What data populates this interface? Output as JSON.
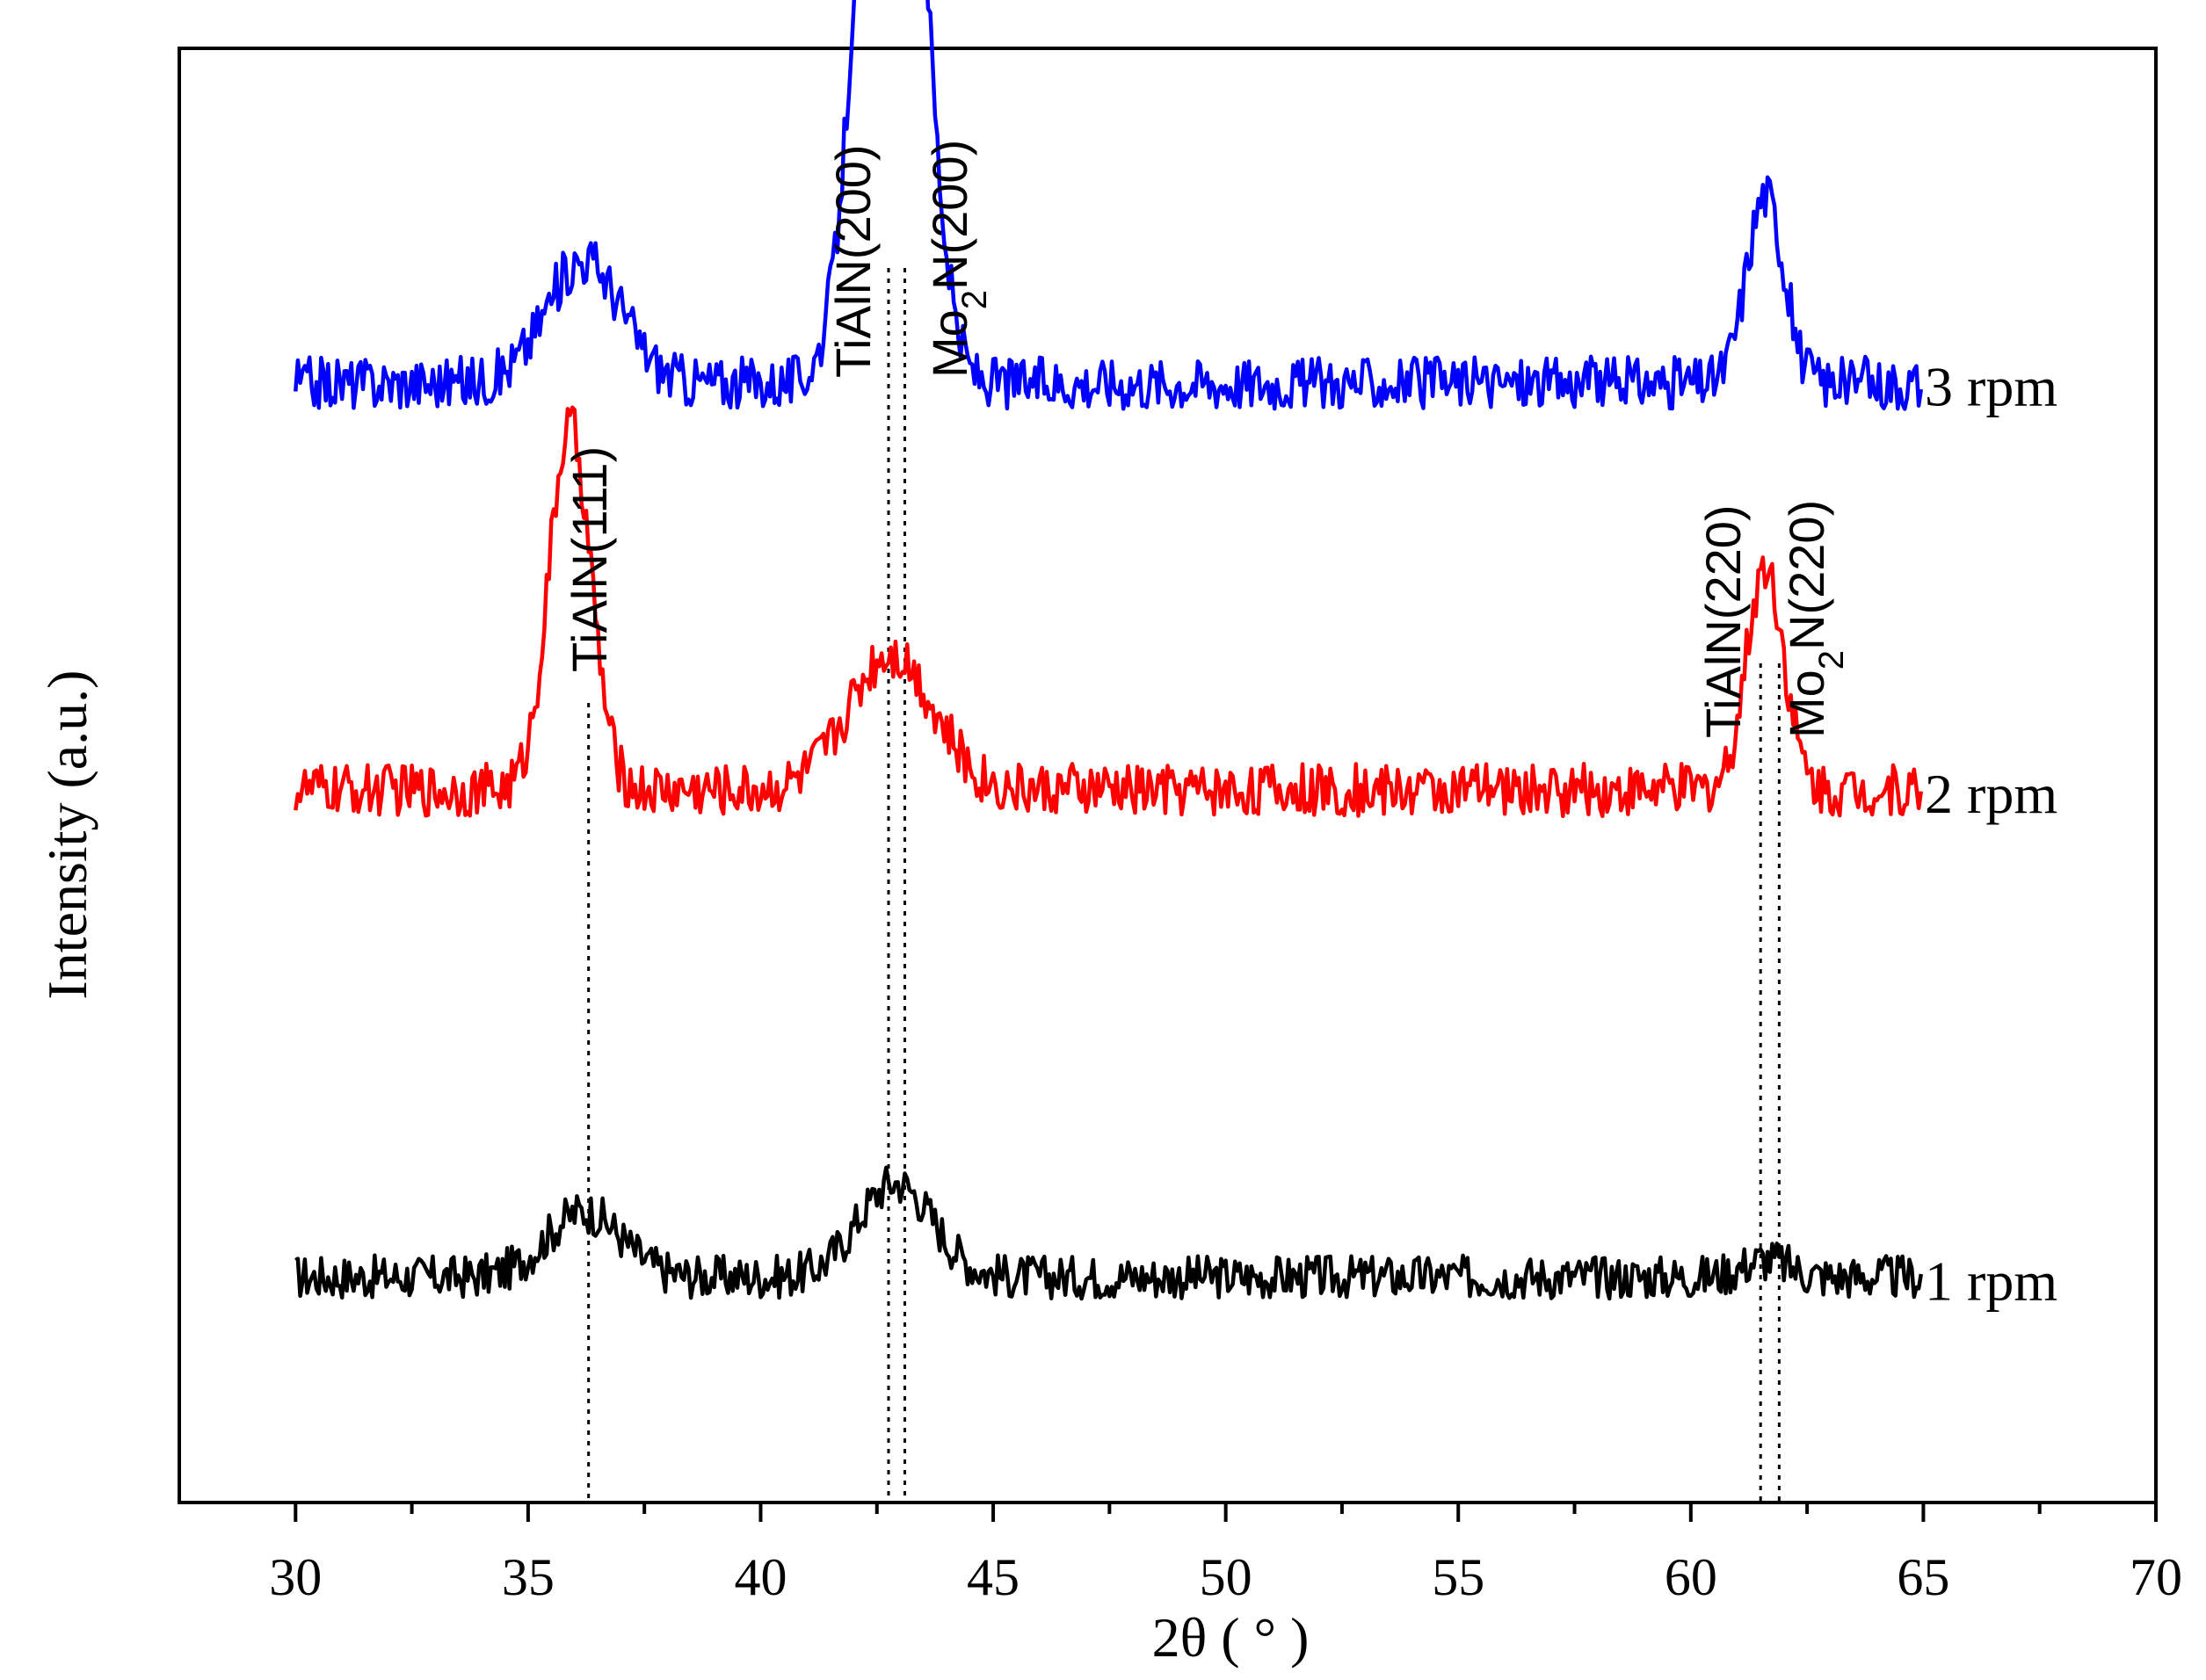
{
  "chart_data": {
    "type": "line",
    "title": "",
    "xlabel": "2θ ( ° )",
    "ylabel": "Intensity (a.u.)",
    "xlim": [
      27.5,
      70
    ],
    "xticks": [
      30,
      35,
      40,
      45,
      50,
      55,
      60,
      65,
      70
    ],
    "ylim": [
      0,
      100
    ],
    "yticks_shown": false,
    "grid": false,
    "series": [
      {
        "name": "1 rpm",
        "color": "#000000",
        "baseline": 15.5,
        "noise": 1.5,
        "peaks": [
          {
            "center": 36.2,
            "height": 4.5,
            "width": 0.8
          },
          {
            "center": 42.9,
            "height": 6.5,
            "width": 0.8
          },
          {
            "center": 61.6,
            "height": 1.2,
            "width": 0.5
          }
        ]
      },
      {
        "name": "2 rpm",
        "color": "#ff0000",
        "baseline": 49,
        "noise": 1.8,
        "peaks": [
          {
            "center": 35.9,
            "height": 25,
            "width": 0.45
          },
          {
            "center": 42.8,
            "height": 9.5,
            "width": 0.9
          },
          {
            "center": 61.6,
            "height": 15.5,
            "width": 0.4
          }
        ]
      },
      {
        "name": "3 rpm",
        "color": "#0000ff",
        "baseline": 77,
        "noise": 1.8,
        "peaks": [
          {
            "center": 36.2,
            "height": 8.5,
            "width": 0.8
          },
          {
            "center": 42.8,
            "height": 66,
            "width": 0.6
          },
          {
            "center": 61.6,
            "height": 13,
            "width": 0.4
          }
        ]
      }
    ],
    "reference_lines": [
      {
        "x": 36.3,
        "label_parts": [
          "TiAlN(111)"
        ]
      },
      {
        "x": 42.75,
        "label_parts": [
          "TiAlN(200)"
        ]
      },
      {
        "x": 43.1,
        "label_parts": [
          "Mo",
          "2",
          "N(200)"
        ]
      },
      {
        "x": 61.5,
        "label_parts": [
          "TiAlN(220)"
        ]
      },
      {
        "x": 61.9,
        "label_parts": [
          "Mo",
          "2",
          "N(220)"
        ]
      }
    ]
  }
}
